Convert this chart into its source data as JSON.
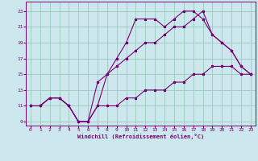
{
  "xlabel": "Windchill (Refroidissement éolien,°C)",
  "bg_color": "#cce8ee",
  "grid_color": "#99ccbb",
  "line_color": "#770077",
  "xlim": [
    -0.5,
    23.5
  ],
  "ylim": [
    8.5,
    24.2
  ],
  "xticks": [
    0,
    1,
    2,
    3,
    4,
    5,
    6,
    7,
    8,
    9,
    10,
    11,
    12,
    13,
    14,
    15,
    16,
    17,
    18,
    19,
    20,
    21,
    22,
    23
  ],
  "yticks": [
    9,
    11,
    13,
    15,
    17,
    19,
    21,
    23
  ],
  "line1_x": [
    0,
    1,
    2,
    3,
    4,
    5,
    6,
    7,
    8,
    9,
    10,
    11,
    12,
    13,
    14,
    15,
    16,
    17,
    18,
    19,
    20,
    21,
    22,
    23
  ],
  "line1_y": [
    11,
    11,
    12,
    12,
    11,
    9,
    9,
    11,
    11,
    11,
    12,
    12,
    13,
    13,
    13,
    14,
    14,
    15,
    15,
    16,
    16,
    16,
    15,
    15
  ],
  "line2_x": [
    0,
    1,
    2,
    3,
    4,
    5,
    6,
    7,
    8,
    9,
    10,
    11,
    12,
    13,
    14,
    15,
    16,
    17,
    18,
    19,
    20,
    21,
    22,
    23
  ],
  "line2_y": [
    11,
    11,
    12,
    12,
    11,
    9,
    9,
    11,
    15,
    17,
    19,
    22,
    22,
    22,
    21,
    22,
    23,
    23,
    22,
    20,
    19,
    18,
    16,
    15
  ],
  "line3_x": [
    0,
    1,
    2,
    3,
    4,
    5,
    6,
    7,
    8,
    9,
    10,
    11,
    12,
    13,
    14,
    15,
    16,
    17,
    18,
    19,
    20,
    21,
    22,
    23
  ],
  "line3_y": [
    11,
    11,
    12,
    12,
    11,
    9,
    9,
    14,
    15,
    16,
    17,
    18,
    19,
    19,
    20,
    21,
    21,
    22,
    23,
    20,
    19,
    18,
    16,
    15
  ]
}
